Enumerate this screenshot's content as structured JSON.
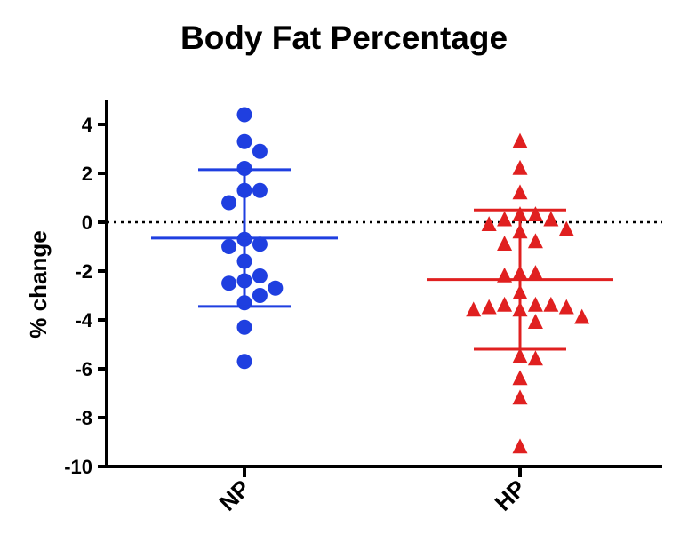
{
  "chart_data": {
    "type": "scatter",
    "title": "Body Fat Percentage",
    "ylabel": "% change",
    "xlabel": "",
    "ylim": [
      -10,
      5
    ],
    "yticks": [
      4,
      2,
      0,
      -2,
      -4,
      -6,
      -8,
      -10
    ],
    "ytick_labels": [
      "4",
      "2",
      "0",
      "-2",
      "-4",
      "-6",
      "-8",
      "-10"
    ],
    "categories": [
      "NP",
      "HP"
    ],
    "reference_line": 0,
    "series": [
      {
        "category": "NP",
        "marker": "circle",
        "color": "#1f3fe0",
        "values": [
          4.4,
          3.3,
          2.9,
          2.2,
          1.3,
          1.3,
          0.8,
          -0.7,
          -1.0,
          -0.9,
          -1.6,
          -2.2,
          -2.4,
          -2.7,
          -2.5,
          -3.0,
          -3.3,
          -4.3,
          -5.7
        ],
        "mean": -0.65,
        "sd_upper": 2.15,
        "sd_lower": -3.45
      },
      {
        "category": "HP",
        "marker": "triangle",
        "color": "#e02020",
        "values": [
          3.3,
          2.2,
          1.2,
          0.3,
          0.3,
          0.1,
          0.1,
          -0.1,
          -0.3,
          -0.4,
          -0.8,
          -0.9,
          -2.1,
          -2.1,
          -2.2,
          -2.9,
          -3.4,
          -3.4,
          -3.5,
          -3.6,
          -3.6,
          -3.5,
          -3.4,
          -3.9,
          -4.1,
          -5.5,
          -5.6,
          -6.4,
          -7.2,
          -9.2
        ],
        "mean": -2.35,
        "sd_upper": 0.5,
        "sd_lower": -5.2
      }
    ]
  }
}
